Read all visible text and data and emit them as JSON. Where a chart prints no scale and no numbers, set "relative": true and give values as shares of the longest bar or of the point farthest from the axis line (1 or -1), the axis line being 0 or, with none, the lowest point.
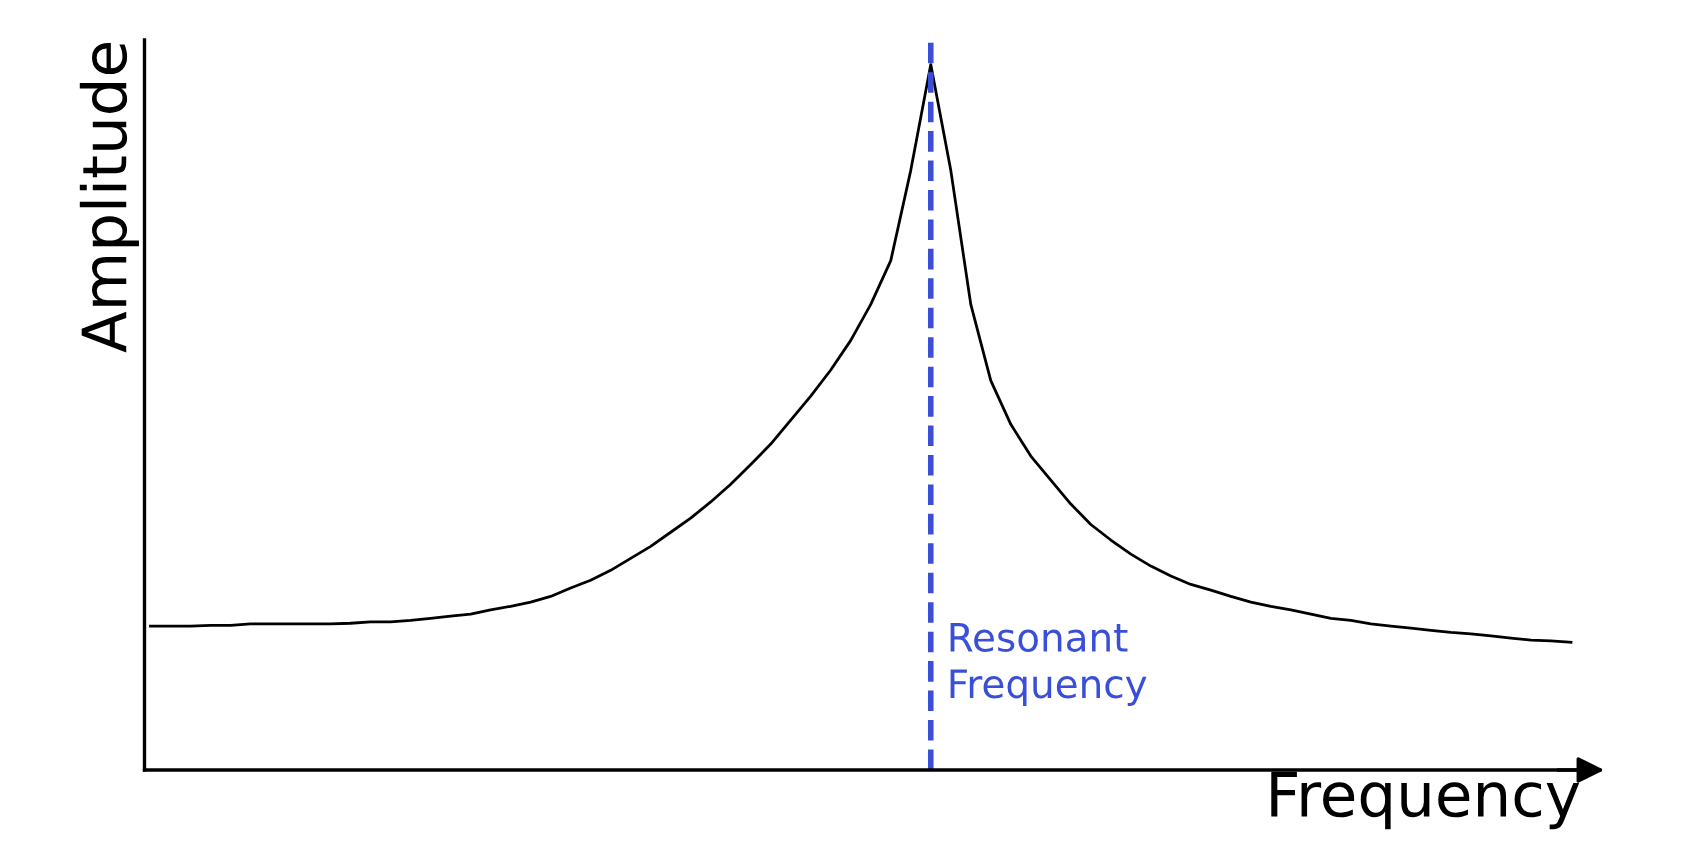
{
  "chart_data": {
    "type": "line",
    "relative": true,
    "xlabel": "Frequency",
    "ylabel": "Amplitude",
    "tick_labels": false,
    "legend": false,
    "marker": "none",
    "line_style": "solid",
    "categories": [
      null,
      null,
      null,
      null,
      null,
      null,
      null,
      null,
      null,
      null,
      null,
      null,
      null,
      null,
      null,
      null,
      null,
      null,
      null,
      null,
      null,
      null,
      null,
      null,
      null,
      null,
      null,
      null,
      null,
      null,
      null,
      null,
      null,
      null,
      null,
      null,
      null,
      null,
      null,
      null,
      null,
      null,
      null,
      null,
      null,
      null,
      null,
      null,
      null,
      null,
      null,
      null,
      null,
      null,
      null,
      null,
      null,
      null,
      null,
      null,
      null,
      null,
      null,
      null,
      null,
      null,
      null,
      null,
      null,
      null,
      null,
      null
    ],
    "series": [
      {
        "color": "#000000",
        "values": [
          0.204,
          0.204,
          0.204,
          0.205,
          0.205,
          0.207,
          0.207,
          0.207,
          0.207,
          0.207,
          0.208,
          0.21,
          0.21,
          0.212,
          0.215,
          0.218,
          0.221,
          0.227,
          0.232,
          0.238,
          0.246,
          0.258,
          0.269,
          0.283,
          0.3,
          0.317,
          0.337,
          0.357,
          0.38,
          0.405,
          0.433,
          0.462,
          0.496,
          0.53,
          0.567,
          0.609,
          0.66,
          0.722,
          0.85,
          1,
          0.85,
          0.66,
          0.552,
          0.49,
          0.445,
          0.411,
          0.377,
          0.348,
          0.326,
          0.306,
          0.289,
          0.275,
          0.263,
          0.255,
          0.246,
          0.238,
          0.232,
          0.227,
          0.221,
          0.215,
          0.212,
          0.207,
          0.204,
          0.201,
          0.198,
          0.195,
          0.193,
          0.19,
          0.187,
          0.184,
          0.183,
          0.181
        ]
      }
    ],
    "annotations": [
      "Resonant Frequency"
    ]
  }
}
